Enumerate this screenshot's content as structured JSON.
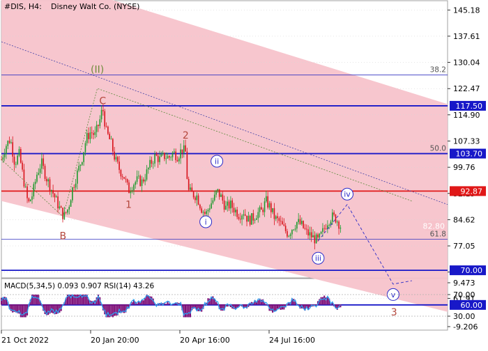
{
  "header": {
    "symbol": "#DIS, H4:",
    "company": "Disney Walt Co. (NYSE)"
  },
  "colors": {
    "channel_fill": "#f7c3cb",
    "candle_up": "#1e9a2e",
    "candle_down": "#d8141c",
    "blue_level": "#1818c8",
    "red_level": "#e01818",
    "wave_label_red": "#b4463c",
    "wave_label_green": "#6e8c3c",
    "wave_label_blue": "#2a2ac8",
    "macd_hist": "#7d0f78",
    "rsi_line": "#2ea0f0"
  },
  "chart_data": {
    "type": "candlestick",
    "price_axis": {
      "ticks": [
        145.18,
        137.61,
        130.04,
        122.47,
        114.9,
        107.33,
        99.76,
        92.19,
        84.62,
        77.05,
        69.48,
        61.91
      ],
      "ylim": [
        56.0,
        150.0
      ]
    },
    "time_axis": {
      "labels": [
        "21 Oct 2022",
        "20 Jan 20:00",
        "20 Apr 16:00",
        "24 Jul 16:00"
      ]
    },
    "levels": [
      {
        "price": 117.5,
        "label": "117.50",
        "color": "#1818c8",
        "fib": ""
      },
      {
        "price": 103.7,
        "label": "103.70",
        "color": "#1818c8",
        "fib": "50.0"
      },
      {
        "price": 92.87,
        "label": "92.87",
        "color": "#e01818",
        "fib": ""
      },
      {
        "price": 70.0,
        "label": "70.00",
        "color": "#1818c8",
        "fib": ""
      },
      {
        "price": 60.0,
        "label": "60.00",
        "color": "#1818c8",
        "fib": ""
      }
    ],
    "current_price": {
      "price": 82.8,
      "label": "82.80"
    },
    "fib_levels": [
      {
        "label": "38.2",
        "price": 126.4
      },
      {
        "label": "50.0",
        "price": 103.7
      },
      {
        "label": "61.8",
        "price": 79.0
      }
    ],
    "wave_labels": [
      {
        "text": "(II)",
        "style": "green",
        "t": 0.215,
        "price": 127.0
      },
      {
        "text": "C",
        "style": "red",
        "t": 0.227,
        "price": 118.0
      },
      {
        "text": "B",
        "style": "red",
        "t": 0.138,
        "price": 79.0
      },
      {
        "text": "1",
        "style": "red",
        "t": 0.285,
        "price": 88.0
      },
      {
        "text": "2",
        "style": "red",
        "t": 0.413,
        "price": 108.0
      },
      {
        "text": "i",
        "style": "blue_circle",
        "t": 0.458,
        "price": 84.0
      },
      {
        "text": "ii",
        "style": "blue_circle",
        "t": 0.483,
        "price": 101.5
      },
      {
        "text": "iii",
        "style": "blue_circle",
        "t": 0.71,
        "price": 73.5
      },
      {
        "text": "iv",
        "style": "blue_circle",
        "t": 0.775,
        "price": 92.0
      },
      {
        "text": "v",
        "style": "blue_circle",
        "t": 0.878,
        "price": 63.0
      },
      {
        "text": "3",
        "style": "red",
        "t": 0.88,
        "price": 57.0
      }
    ],
    "price_series": [
      [
        0.0,
        102.0
      ],
      [
        0.01,
        106.0
      ],
      [
        0.02,
        108.0
      ],
      [
        0.03,
        101.0
      ],
      [
        0.04,
        103.5
      ],
      [
        0.05,
        96.0
      ],
      [
        0.06,
        89.0
      ],
      [
        0.07,
        92.0
      ],
      [
        0.08,
        98.0
      ],
      [
        0.09,
        101.0
      ],
      [
        0.1,
        97.0
      ],
      [
        0.11,
        94.0
      ],
      [
        0.12,
        91.0
      ],
      [
        0.13,
        88.0
      ],
      [
        0.14,
        85.5
      ],
      [
        0.15,
        88.0
      ],
      [
        0.16,
        94.0
      ],
      [
        0.17,
        98.0
      ],
      [
        0.18,
        102.0
      ],
      [
        0.19,
        108.0
      ],
      [
        0.2,
        110.0
      ],
      [
        0.21,
        109.0
      ],
      [
        0.22,
        113.0
      ],
      [
        0.227,
        117.0
      ],
      [
        0.235,
        110.0
      ],
      [
        0.245,
        107.0
      ],
      [
        0.255,
        102.0
      ],
      [
        0.265,
        99.0
      ],
      [
        0.275,
        97.0
      ],
      [
        0.285,
        93.0
      ],
      [
        0.295,
        95.0
      ],
      [
        0.305,
        96.0
      ],
      [
        0.315,
        95.5
      ],
      [
        0.325,
        98.0
      ],
      [
        0.335,
        101.0
      ],
      [
        0.345,
        103.0
      ],
      [
        0.355,
        102.0
      ],
      [
        0.365,
        103.0
      ],
      [
        0.375,
        102.5
      ],
      [
        0.385,
        104.0
      ],
      [
        0.395,
        103.0
      ],
      [
        0.405,
        105.0
      ],
      [
        0.413,
        104.0
      ],
      [
        0.418,
        93.0
      ],
      [
        0.428,
        92.0
      ],
      [
        0.438,
        91.5
      ],
      [
        0.448,
        88.0
      ],
      [
        0.458,
        86.0
      ],
      [
        0.468,
        89.0
      ],
      [
        0.478,
        91.0
      ],
      [
        0.483,
        93.0
      ],
      [
        0.493,
        91.0
      ],
      [
        0.503,
        88.0
      ],
      [
        0.513,
        89.0
      ],
      [
        0.523,
        87.5
      ],
      [
        0.533,
        86.0
      ],
      [
        0.543,
        87.0
      ],
      [
        0.553,
        84.5
      ],
      [
        0.563,
        85.0
      ],
      [
        0.573,
        86.5
      ],
      [
        0.583,
        87.0
      ],
      [
        0.593,
        90.0
      ],
      [
        0.603,
        88.0
      ],
      [
        0.613,
        85.0
      ],
      [
        0.623,
        84.0
      ],
      [
        0.633,
        82.0
      ],
      [
        0.643,
        80.5
      ],
      [
        0.653,
        82.5
      ],
      [
        0.663,
        84.0
      ],
      [
        0.673,
        83.0
      ],
      [
        0.683,
        81.0
      ],
      [
        0.693,
        80.0
      ],
      [
        0.703,
        79.0
      ],
      [
        0.71,
        78.5
      ],
      [
        0.72,
        81.0
      ],
      [
        0.73,
        84.0
      ],
      [
        0.74,
        85.5
      ],
      [
        0.75,
        85.0
      ],
      [
        0.76,
        82.8
      ]
    ],
    "wave_path_green": [
      [
        0.0,
        102.0
      ],
      [
        0.138,
        85.5
      ],
      [
        0.215,
        122.5
      ],
      [
        0.92,
        90.0
      ]
    ],
    "wave_path_blue": [
      [
        0.71,
        78.5
      ],
      [
        0.775,
        89.0
      ],
      [
        0.878,
        66.0
      ],
      [
        0.92,
        67.0
      ]
    ],
    "channel": {
      "upper": [
        [
          0.0,
          158.0
        ],
        [
          1.0,
          118.0
        ]
      ],
      "lower": [
        [
          0.0,
          90.0
        ],
        [
          1.0,
          58.0
        ]
      ]
    },
    "indicator": {
      "label": "MACD(5,34,5) 0.093 0.907 RSI(14) 43.26",
      "ticks": [
        "9.473",
        "70.00",
        "30.00",
        "-9.206"
      ]
    }
  }
}
